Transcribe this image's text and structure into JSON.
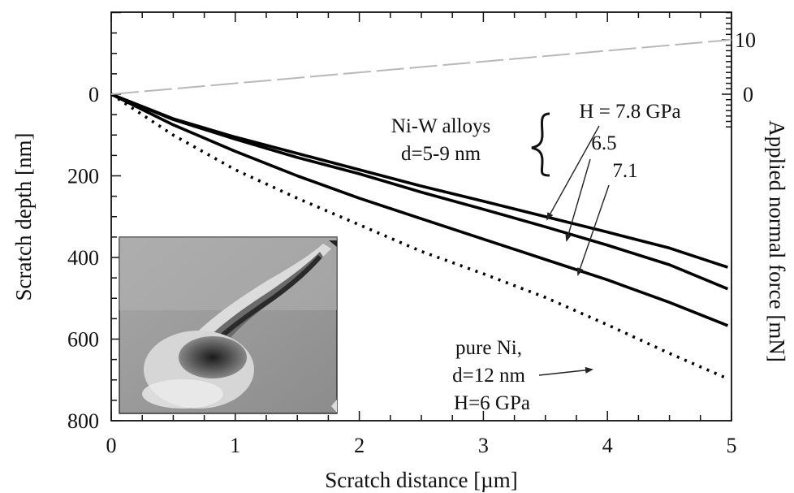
{
  "chart_data": {
    "type": "line",
    "xlabel": "Scratch distance [µm]",
    "ylabel": "Scratch depth [nm]",
    "y2label": "Applied normal force [mN]",
    "xlim": [
      0,
      5
    ],
    "ylim": [
      800,
      -200
    ],
    "y2lim": [
      0,
      10
    ],
    "x_ticks": [
      0,
      1,
      2,
      3,
      4,
      5
    ],
    "y_ticks": [
      0,
      200,
      400,
      600,
      800
    ],
    "y2_ticks": [
      0,
      10
    ],
    "grid": false,
    "series": [
      {
        "name": "H = 7.8 GPa",
        "style": "solid",
        "color": "#000000",
        "x": [
          0,
          0.5,
          1,
          1.5,
          2,
          2.5,
          3,
          3.5,
          4,
          4.5,
          4.97
        ],
        "y": [
          0,
          60,
          105,
          145,
          185,
          225,
          262,
          300,
          338,
          377,
          424
        ]
      },
      {
        "name": "6.5",
        "style": "solid",
        "color": "#000000",
        "x": [
          0,
          0.5,
          1,
          1.5,
          2,
          2.5,
          3,
          3.5,
          4,
          4.5,
          4.97
        ],
        "y": [
          0,
          62,
          110,
          155,
          195,
          240,
          282,
          325,
          370,
          418,
          477
        ]
      },
      {
        "name": "7.1",
        "style": "solid",
        "color": "#000000",
        "x": [
          0,
          0.5,
          1,
          1.5,
          2,
          2.5,
          3,
          3.5,
          4,
          4.5,
          4.97
        ],
        "y": [
          0,
          75,
          140,
          200,
          255,
          305,
          355,
          405,
          455,
          510,
          567
        ]
      },
      {
        "name": "pure Ni",
        "style": "dotted",
        "color": "#000000",
        "x": [
          0,
          0.5,
          1,
          1.5,
          2,
          2.5,
          3,
          3.5,
          4,
          4.5,
          4.97
        ],
        "y": [
          0,
          100,
          185,
          255,
          320,
          385,
          440,
          498,
          565,
          635,
          697
        ]
      },
      {
        "name": "Applied normal force",
        "axis": "y2",
        "style": "dashed",
        "color": "#b8b8b8",
        "x": [
          0,
          5
        ],
        "y": [
          0,
          10
        ]
      }
    ],
    "annotations": {
      "group_label": [
        "Ni-W alloys",
        "d=5-9 nm"
      ],
      "h_labels": [
        "H = 7.8 GPa",
        "6.5",
        "7.1"
      ],
      "ni_label": [
        "pure Ni,",
        "d=12 nm",
        "H=6 GPa"
      ]
    },
    "inset": "AFM image of scratch groove"
  }
}
